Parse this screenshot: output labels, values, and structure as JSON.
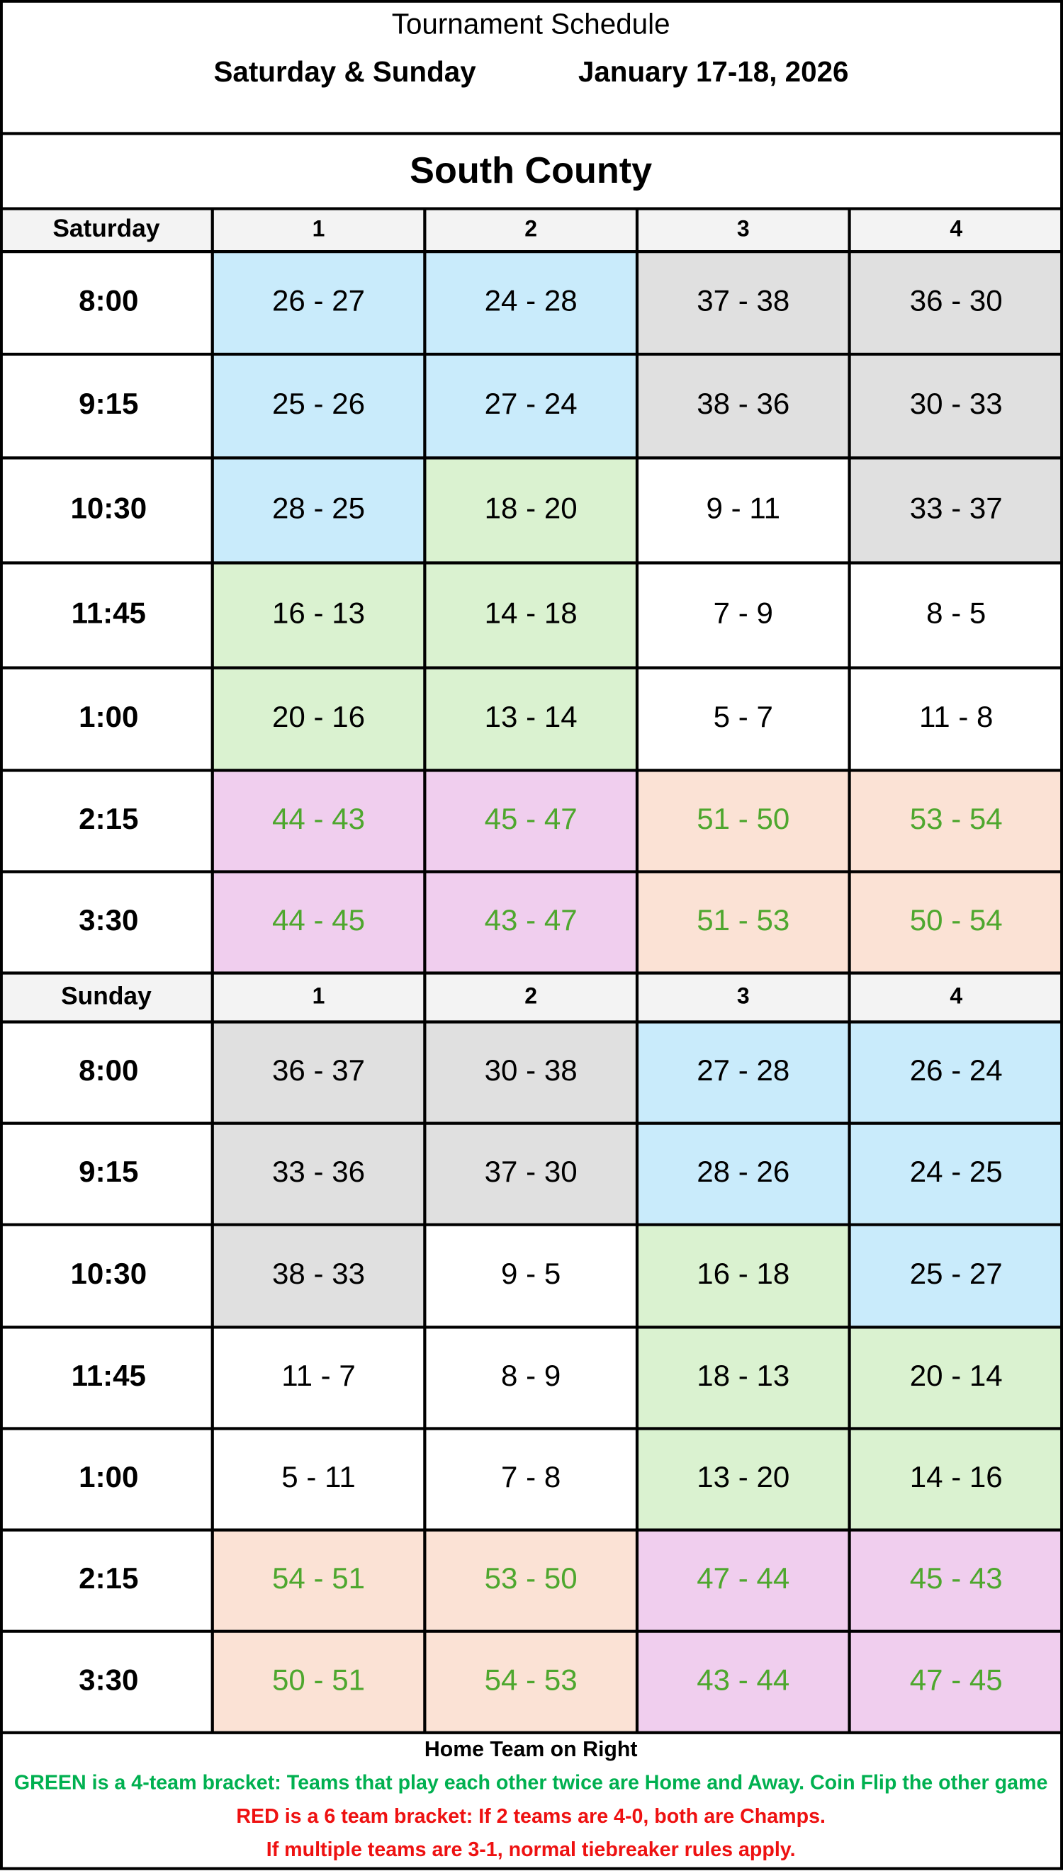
{
  "header": {
    "title": "Tournament Schedule",
    "days": "Saturday & Sunday",
    "dates": "January 17-18, 2026"
  },
  "location": "South County",
  "sections": [
    {
      "day": "Saturday",
      "columns": [
        "1",
        "2",
        "3",
        "4"
      ],
      "rows": [
        {
          "time": "8:00",
          "games": [
            {
              "label": "26 - 27",
              "fill": "#c9ebfb",
              "color": "#000000"
            },
            {
              "label": "24 - 28",
              "fill": "#c9ebfb",
              "color": "#000000"
            },
            {
              "label": "37 - 38",
              "fill": "#e0e0e0",
              "color": "#000000"
            },
            {
              "label": "36 - 30",
              "fill": "#e0e0e0",
              "color": "#000000"
            }
          ]
        },
        {
          "time": "9:15",
          "games": [
            {
              "label": "25 - 26",
              "fill": "#c9ebfb",
              "color": "#000000"
            },
            {
              "label": "27 - 24",
              "fill": "#c9ebfb",
              "color": "#000000"
            },
            {
              "label": "38 - 36",
              "fill": "#e0e0e0",
              "color": "#000000"
            },
            {
              "label": "30 - 33",
              "fill": "#e0e0e0",
              "color": "#000000"
            }
          ]
        },
        {
          "time": "10:30",
          "games": [
            {
              "label": "28 - 25",
              "fill": "#c9ebfb",
              "color": "#000000"
            },
            {
              "label": "18 - 20",
              "fill": "#daf2d0",
              "color": "#000000"
            },
            {
              "label": "9 - 11",
              "fill": "#ffffff",
              "color": "#000000"
            },
            {
              "label": "33 - 37",
              "fill": "#e0e0e0",
              "color": "#000000"
            }
          ]
        },
        {
          "time": "11:45",
          "games": [
            {
              "label": "16 - 13",
              "fill": "#daf2d0",
              "color": "#000000"
            },
            {
              "label": "14 - 18",
              "fill": "#daf2d0",
              "color": "#000000"
            },
            {
              "label": "7 - 9",
              "fill": "#ffffff",
              "color": "#000000"
            },
            {
              "label": "8 - 5",
              "fill": "#ffffff",
              "color": "#000000"
            }
          ]
        },
        {
          "time": "1:00",
          "games": [
            {
              "label": "20 - 16",
              "fill": "#daf2d0",
              "color": "#000000"
            },
            {
              "label": "13 - 14",
              "fill": "#daf2d0",
              "color": "#000000"
            },
            {
              "label": "5 - 7",
              "fill": "#ffffff",
              "color": "#000000"
            },
            {
              "label": "11 - 8",
              "fill": "#ffffff",
              "color": "#000000"
            }
          ]
        },
        {
          "time": "2:15",
          "games": [
            {
              "label": "44 - 43",
              "fill": "#f0ceee",
              "color": "#4ea72e"
            },
            {
              "label": "45 - 47",
              "fill": "#f0ceee",
              "color": "#4ea72e"
            },
            {
              "label": "51 - 50",
              "fill": "#fbe2d5",
              "color": "#4ea72e"
            },
            {
              "label": "53 - 54",
              "fill": "#fbe2d5",
              "color": "#4ea72e"
            }
          ]
        },
        {
          "time": "3:30",
          "games": [
            {
              "label": "44 - 45",
              "fill": "#f0ceee",
              "color": "#4ea72e"
            },
            {
              "label": "43 - 47",
              "fill": "#f0ceee",
              "color": "#4ea72e"
            },
            {
              "label": "51 - 53",
              "fill": "#fbe2d5",
              "color": "#4ea72e"
            },
            {
              "label": "50 - 54",
              "fill": "#fbe2d5",
              "color": "#4ea72e"
            }
          ]
        }
      ]
    },
    {
      "day": "Sunday",
      "columns": [
        "1",
        "2",
        "3",
        "4"
      ],
      "rows": [
        {
          "time": "8:00",
          "games": [
            {
              "label": "36 - 37",
              "fill": "#e0e0e0",
              "color": "#000000"
            },
            {
              "label": "30 - 38",
              "fill": "#e0e0e0",
              "color": "#000000"
            },
            {
              "label": "27 - 28",
              "fill": "#c9ebfb",
              "color": "#000000"
            },
            {
              "label": "26 - 24",
              "fill": "#c9ebfb",
              "color": "#000000"
            }
          ]
        },
        {
          "time": "9:15",
          "games": [
            {
              "label": "33 - 36",
              "fill": "#e0e0e0",
              "color": "#000000"
            },
            {
              "label": "37 - 30",
              "fill": "#e0e0e0",
              "color": "#000000"
            },
            {
              "label": "28 - 26",
              "fill": "#c9ebfb",
              "color": "#000000"
            },
            {
              "label": "24 - 25",
              "fill": "#c9ebfb",
              "color": "#000000"
            }
          ]
        },
        {
          "time": "10:30",
          "games": [
            {
              "label": "38 - 33",
              "fill": "#e0e0e0",
              "color": "#000000"
            },
            {
              "label": "9 - 5",
              "fill": "#ffffff",
              "color": "#000000"
            },
            {
              "label": "16 - 18",
              "fill": "#daf2d0",
              "color": "#000000"
            },
            {
              "label": "25 - 27",
              "fill": "#c9ebfb",
              "color": "#000000"
            }
          ]
        },
        {
          "time": "11:45",
          "games": [
            {
              "label": "11 - 7",
              "fill": "#ffffff",
              "color": "#000000"
            },
            {
              "label": "8 - 9",
              "fill": "#ffffff",
              "color": "#000000"
            },
            {
              "label": "18 - 13",
              "fill": "#daf2d0",
              "color": "#000000"
            },
            {
              "label": "20 - 14",
              "fill": "#daf2d0",
              "color": "#000000"
            }
          ]
        },
        {
          "time": "1:00",
          "games": [
            {
              "label": "5 - 11",
              "fill": "#ffffff",
              "color": "#000000"
            },
            {
              "label": "7 - 8",
              "fill": "#ffffff",
              "color": "#000000"
            },
            {
              "label": "13 - 20",
              "fill": "#daf2d0",
              "color": "#000000"
            },
            {
              "label": "14 - 16",
              "fill": "#daf2d0",
              "color": "#000000"
            }
          ]
        },
        {
          "time": "2:15",
          "games": [
            {
              "label": "54 - 51",
              "fill": "#fbe2d5",
              "color": "#4ea72e"
            },
            {
              "label": "53 - 50",
              "fill": "#fbe2d5",
              "color": "#4ea72e"
            },
            {
              "label": "47 - 44",
              "fill": "#f0ceee",
              "color": "#4ea72e"
            },
            {
              "label": "45 - 43",
              "fill": "#f0ceee",
              "color": "#4ea72e"
            }
          ]
        },
        {
          "time": "3:30",
          "games": [
            {
              "label": "50 - 51",
              "fill": "#fbe2d5",
              "color": "#4ea72e"
            },
            {
              "label": "54 - 53",
              "fill": "#fbe2d5",
              "color": "#4ea72e"
            },
            {
              "label": "43 - 44",
              "fill": "#f0ceee",
              "color": "#4ea72e"
            },
            {
              "label": "47 - 45",
              "fill": "#f0ceee",
              "color": "#4ea72e"
            }
          ]
        }
      ]
    }
  ],
  "footer": [
    {
      "text": "Home Team on Right",
      "color": "#000000"
    },
    {
      "text": "GREEN is a 4-team bracket:  Teams that play each other twice are Home and Away.  Coin Flip the other game",
      "color": "#00b050"
    },
    {
      "text": "RED is a 6 team bracket:  If 2 teams are 4-0, both are Champs.",
      "color": "#ee1111"
    },
    {
      "text": "If multiple teams are 3-1, normal tiebreaker rules apply.",
      "color": "#ee1111"
    }
  ]
}
